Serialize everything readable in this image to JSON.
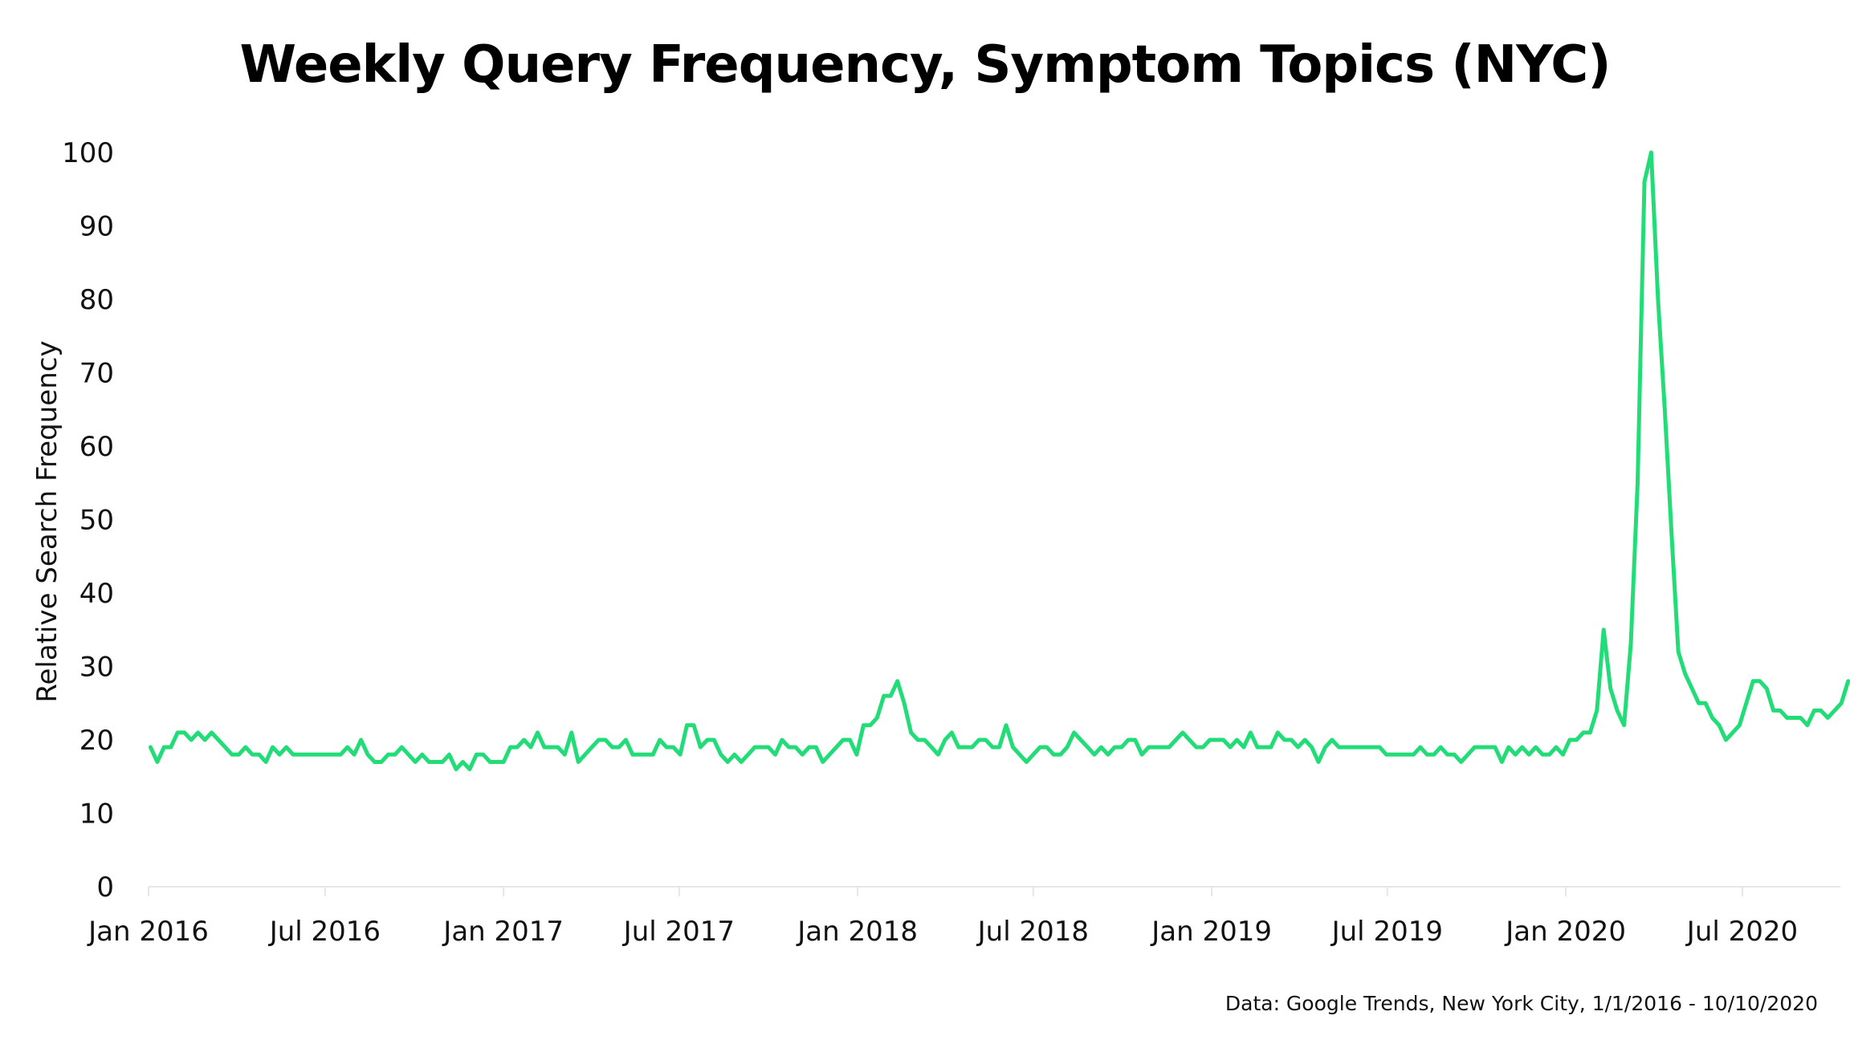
{
  "chart_data": {
    "type": "line",
    "title": "Weekly Query Frequency, Symptom Topics (NYC)",
    "ylabel": "Relative Search Frequency",
    "xlabel": "",
    "source_note": "Data: Google Trends, New York City, 1/1/2016 - 10/10/2020",
    "ylim": [
      0,
      100
    ],
    "yticks": [
      0,
      10,
      20,
      30,
      40,
      50,
      60,
      70,
      80,
      90,
      100
    ],
    "xlim": [
      "2016-01-01",
      "2020-10-10"
    ],
    "xticks": [
      {
        "date": "2016-01-01",
        "label": "Jan 2016"
      },
      {
        "date": "2016-07-01",
        "label": "Jul 2016"
      },
      {
        "date": "2017-01-01",
        "label": "Jan 2017"
      },
      {
        "date": "2017-07-01",
        "label": "Jul 2017"
      },
      {
        "date": "2018-01-01",
        "label": "Jan 2018"
      },
      {
        "date": "2018-07-01",
        "label": "Jul 2018"
      },
      {
        "date": "2019-01-01",
        "label": "Jan 2019"
      },
      {
        "date": "2019-07-01",
        "label": "Jul 2019"
      },
      {
        "date": "2020-01-01",
        "label": "Jan 2020"
      },
      {
        "date": "2020-07-01",
        "label": "Jul 2020"
      }
    ],
    "grid": false,
    "line_color": "#22dd77",
    "series": [
      {
        "start_date": "2016-01-03",
        "step_days": 7,
        "values": [
          19,
          17,
          19,
          19,
          21,
          21,
          20,
          21,
          20,
          21,
          20,
          19,
          18,
          18,
          19,
          18,
          18,
          17,
          19,
          18,
          19,
          18,
          18,
          18,
          18,
          18,
          18,
          18,
          18,
          19,
          18,
          20,
          18,
          17,
          17,
          18,
          18,
          19,
          18,
          17,
          18,
          17,
          17,
          17,
          18,
          16,
          17,
          16,
          18,
          18,
          17,
          17,
          17,
          19,
          19,
          20,
          19,
          21,
          19,
          19,
          19,
          18,
          21,
          17,
          18,
          19,
          20,
          20,
          19,
          19,
          20,
          18,
          18,
          18,
          18,
          20,
          19,
          19,
          18,
          22,
          22,
          19,
          20,
          20,
          18,
          17,
          18,
          17,
          18,
          19,
          19,
          19,
          18,
          20,
          19,
          19,
          18,
          19,
          19,
          17,
          18,
          19,
          20,
          20,
          18,
          22,
          22,
          23,
          26,
          26,
          28,
          25,
          21,
          20,
          20,
          19,
          18,
          20,
          21,
          19,
          19,
          19,
          20,
          20,
          19,
          19,
          22,
          19,
          18,
          17,
          18,
          19,
          19,
          18,
          18,
          19,
          21,
          20,
          19,
          18,
          19,
          18,
          19,
          19,
          20,
          20,
          18,
          19,
          19,
          19,
          19,
          20,
          21,
          20,
          19,
          19,
          20,
          20,
          20,
          19,
          20,
          19,
          21,
          19,
          19,
          19,
          21,
          20,
          20,
          19,
          20,
          19,
          17,
          19,
          20,
          19,
          19,
          19,
          19,
          19,
          19,
          19,
          18,
          18,
          18,
          18,
          18,
          19,
          18,
          18,
          19,
          18,
          18,
          17,
          18,
          19,
          19,
          19,
          19,
          17,
          19,
          18,
          19,
          18,
          19,
          18,
          18,
          19,
          18,
          20,
          20,
          21,
          21,
          24,
          35,
          27,
          24,
          22,
          33,
          55,
          96,
          100,
          80,
          65,
          48,
          32,
          29,
          27,
          25,
          25,
          23,
          22,
          20,
          21,
          22,
          25,
          28,
          28,
          27,
          24,
          24,
          23,
          23,
          23,
          22,
          24,
          24,
          23,
          24,
          25,
          28
        ]
      }
    ]
  }
}
